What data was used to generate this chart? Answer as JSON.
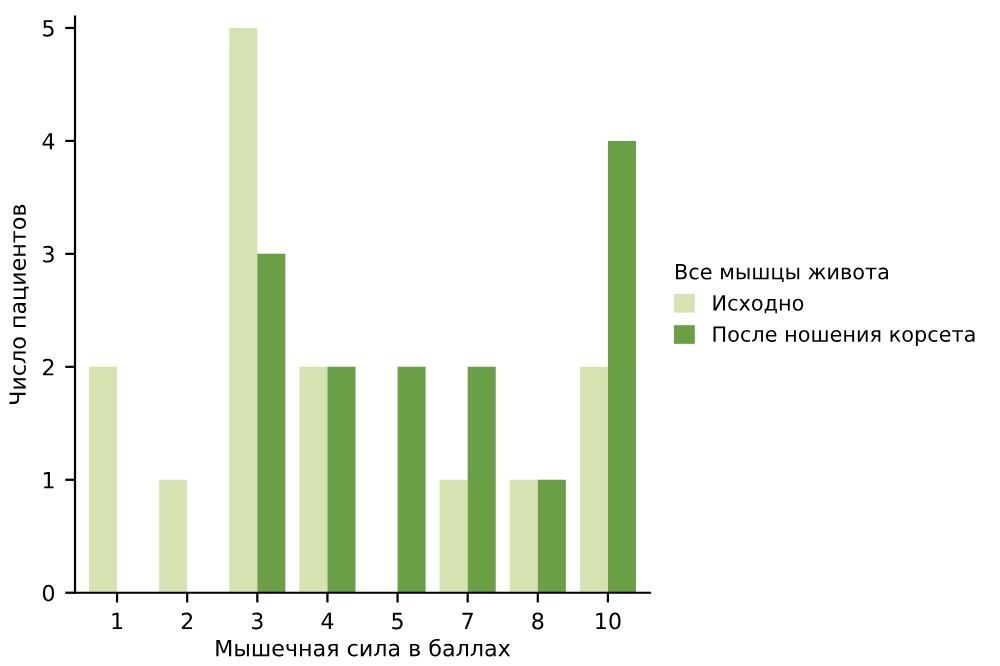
{
  "chart_data": {
    "type": "bar",
    "xlabel": "Мышечная сила в баллах",
    "ylabel": "Число пациентов",
    "legend_title": "Все мышцы живота",
    "categories": [
      "1",
      "2",
      "3",
      "4",
      "5",
      "7",
      "8",
      "10"
    ],
    "series": [
      {
        "name": "Исходно",
        "color": "#d5e3b3",
        "values": [
          2,
          1,
          5,
          2,
          0,
          1,
          1,
          2
        ]
      },
      {
        "name": "После ношения корсета",
        "color": "#6a9f45",
        "values": [
          0,
          0,
          3,
          2,
          2,
          2,
          1,
          4
        ]
      }
    ],
    "ylim": [
      0,
      5.1
    ],
    "yticks": [
      0,
      1,
      2,
      3,
      4,
      5
    ],
    "grid": false,
    "legend": "right"
  }
}
